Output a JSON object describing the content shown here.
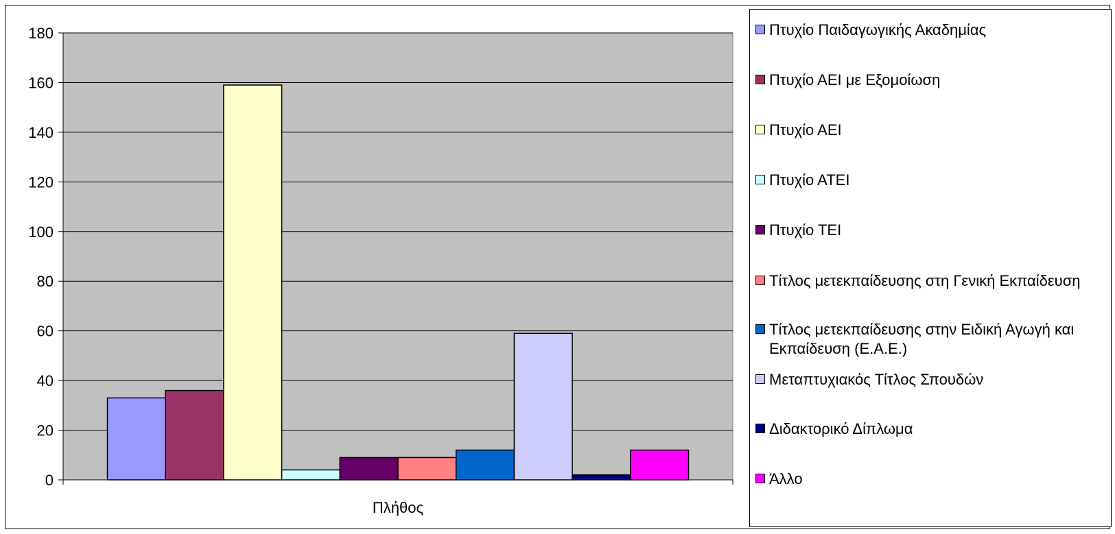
{
  "chart_data": {
    "type": "bar",
    "categories": [
      "Πλήθος"
    ],
    "series": [
      {
        "name": "Πτυχίο Παιδαγωγικής Ακαδημίας",
        "values": [
          33
        ],
        "color": "#9999FF"
      },
      {
        "name": "Πτυχίο ΑΕΙ με Εξομοίωση",
        "values": [
          36
        ],
        "color": "#993366"
      },
      {
        "name": "Πτυχίο ΑΕΙ",
        "values": [
          159
        ],
        "color": "#FFFFCC"
      },
      {
        "name": "Πτυχίο ΑΤΕΙ",
        "values": [
          4
        ],
        "color": "#CCFFFF"
      },
      {
        "name": "Πτυχίο ΤΕΙ",
        "values": [
          9
        ],
        "color": "#660066"
      },
      {
        "name": "Τίτλος μετεκπαίδευσης στη Γενική Εκπαίδευση",
        "values": [
          9
        ],
        "color": "#FF8080"
      },
      {
        "name": "Τίτλος μετεκπαίδευσης στην Ειδική Αγωγή και Εκπαίδευση (Ε.Α.Ε.)",
        "values": [
          12
        ],
        "color": "#0066CC"
      },
      {
        "name": "Μεταπτυχιακός Τίτλος Σπουδών",
        "values": [
          59
        ],
        "color": "#CCCCFF"
      },
      {
        "name": "Διδακτορικό Δίπλωμα",
        "values": [
          2
        ],
        "color": "#000080"
      },
      {
        "name": "Άλλο",
        "values": [
          12
        ],
        "color": "#FF00FF"
      }
    ],
    "ylim": [
      0,
      180
    ],
    "yticks": [
      0,
      20,
      40,
      60,
      80,
      100,
      120,
      140,
      160,
      180
    ],
    "grid": true,
    "plot_background": "#C0C0C0",
    "legend_position": "right"
  }
}
